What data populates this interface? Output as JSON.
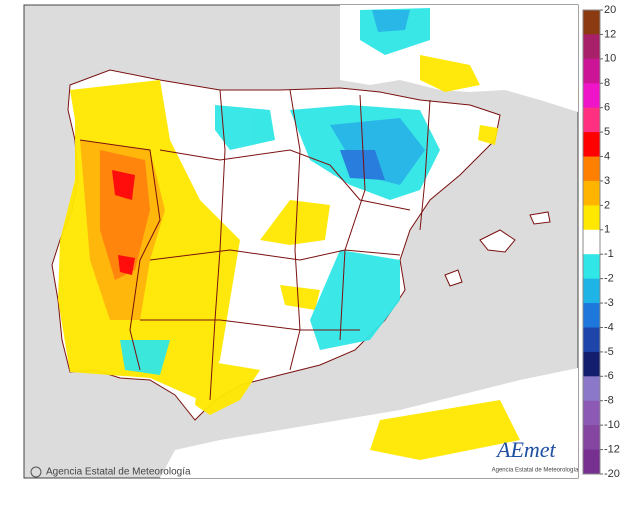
{
  "credit": "Agencia Estatal de Meteorología",
  "logo": {
    "name": "AEmet",
    "subtitle": "Agencia Estatal de Meteorología"
  },
  "colorbar": {
    "ticks": [
      20,
      12,
      10,
      8,
      6,
      5,
      4,
      3,
      2,
      1,
      -1,
      -2,
      -3,
      -4,
      -5,
      -6,
      -8,
      -10,
      -12,
      -20
    ],
    "colors": [
      "#8b3a12",
      "#a8206a",
      "#cc1496",
      "#f014c8",
      "#ff3080",
      "#ff0000",
      "#ff7f00",
      "#ffb400",
      "#ffe800",
      "#ffffff",
      "#30e6e6",
      "#1eb4e6",
      "#1e78dc",
      "#1e46aa",
      "#141e6e",
      "#8c78c8",
      "#8c5ab4",
      "#8446a0",
      "#783090"
    ]
  }
}
